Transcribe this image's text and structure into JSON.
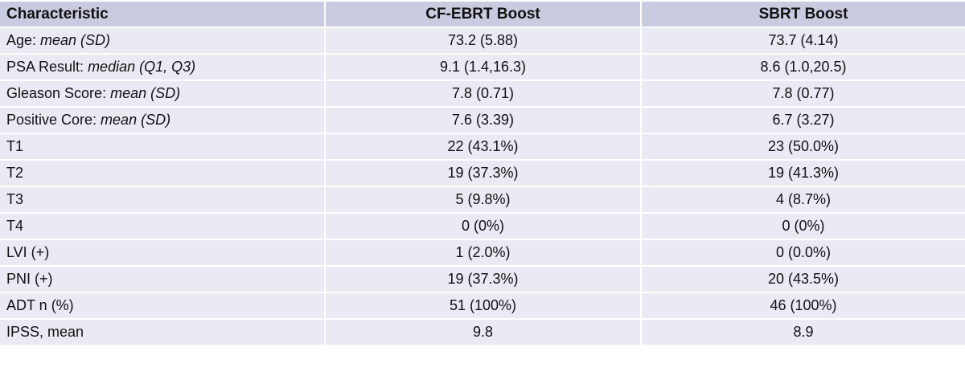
{
  "table": {
    "headers": [
      "Characteristic",
      "CF-EBRT Boost",
      "SBRT Boost"
    ],
    "rows": [
      {
        "label": "Age: ",
        "label_italic": "mean (SD)",
        "cf": "73.2 (5.88)",
        "sbrt": "73.7 (4.14)"
      },
      {
        "label": "PSA Result: ",
        "label_italic": "median (Q1, Q3)",
        "cf": "9.1 (1.4,16.3)",
        "sbrt": "8.6 (1.0,20.5)"
      },
      {
        "label": "Gleason Score: ",
        "label_italic": "mean (SD)",
        "cf": "7.8 (0.71)",
        "sbrt": "7.8 (0.77)"
      },
      {
        "label": "Positive Core: ",
        "label_italic": "mean (SD)",
        "cf": "7.6 (3.39)",
        "sbrt": "6.7 (3.27)"
      },
      {
        "label": "T1",
        "label_italic": "",
        "cf": "22 (43.1%)",
        "sbrt": "23 (50.0%)"
      },
      {
        "label": "T2",
        "label_italic": "",
        "cf": "19 (37.3%)",
        "sbrt": "19 (41.3%)"
      },
      {
        "label": "T3",
        "label_italic": "",
        "cf": "5 (9.8%)",
        "sbrt": "4 (8.7%)"
      },
      {
        "label": "T4",
        "label_italic": "",
        "cf": "0 (0%)",
        "sbrt": "0 (0%)"
      },
      {
        "label": "LVI (+)",
        "label_italic": "",
        "cf": "1 (2.0%)",
        "sbrt": "0 (0.0%)"
      },
      {
        "label": "PNI (+)",
        "label_italic": "",
        "cf": "19 (37.3%)",
        "sbrt": "20 (43.5%)"
      },
      {
        "label": "ADT n (%)",
        "label_italic": "",
        "cf": "51 (100%)",
        "sbrt": "46 (100%)"
      },
      {
        "label": "IPSS, mean",
        "label_italic": "",
        "cf": "9.8",
        "sbrt": "8.9"
      }
    ]
  },
  "colors": {
    "header_bg": "#c9cbe0",
    "row_bg": "#e9eaf3",
    "separator": "#ffffff",
    "text": "#111111"
  }
}
